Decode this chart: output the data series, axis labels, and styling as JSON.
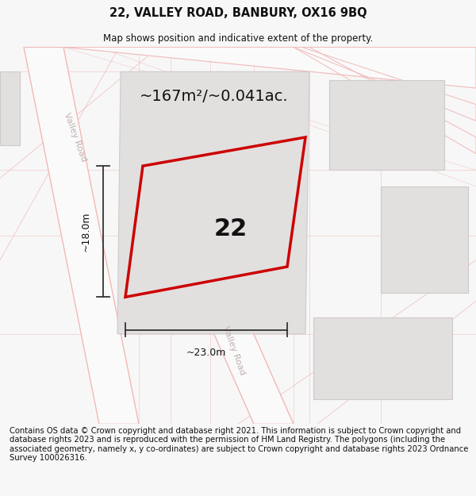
{
  "title": "22, VALLEY ROAD, BANBURY, OX16 9BQ",
  "subtitle": "Map shows position and indicative extent of the property.",
  "footer": "Contains OS data © Crown copyright and database right 2021. This information is subject to Crown copyright and database rights 2023 and is reproduced with the permission of HM Land Registry. The polygons (including the associated geometry, namely x, y co-ordinates) are subject to Crown copyright and database rights 2023 Ordnance Survey 100026316.",
  "area_label": "~167m²/~0.041ac.",
  "width_label": "~23.0m",
  "height_label": "~18.0m",
  "number_label": "22",
  "bg_color": "#f7f7f7",
  "map_bg": "#eeecec",
  "road_color": "#f2b8b8",
  "road_fill": "#fafafa",
  "block_fill": "#e2dfdf",
  "block_edge": "#d0caca",
  "property_edge": "#cc0000",
  "property_fill": "#e2dfdf",
  "dim_color": "#333333",
  "title_fontsize": 10.5,
  "subtitle_fontsize": 8.5,
  "footer_fontsize": 7.2,
  "road_label_color": "#c0b0b0"
}
